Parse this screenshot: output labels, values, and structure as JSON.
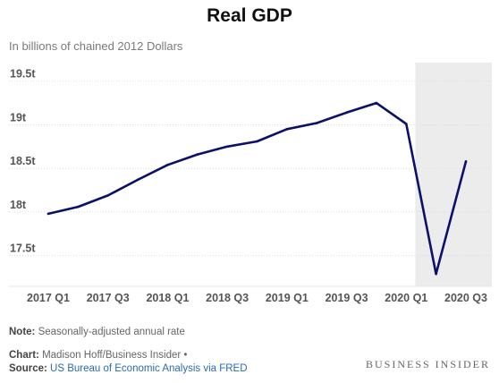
{
  "chart_data": {
    "type": "line",
    "title": "Real GDP",
    "subtitle": "In billions of chained 2012 Dollars",
    "x": [
      "2017 Q1",
      "2017 Q2",
      "2017 Q3",
      "2017 Q4",
      "2018 Q1",
      "2018 Q2",
      "2018 Q3",
      "2018 Q4",
      "2019 Q1",
      "2019 Q2",
      "2019 Q3",
      "2019 Q4",
      "2020 Q1",
      "2020 Q2",
      "2020 Q3"
    ],
    "series": [
      {
        "name": "",
        "values": [
          17.98,
          18.06,
          18.19,
          18.37,
          18.54,
          18.66,
          18.75,
          18.81,
          18.95,
          19.02,
          19.14,
          19.25,
          19.01,
          17.29,
          18.58
        ]
      }
    ],
    "x_tick_labels": [
      "2017 Q1",
      "2017 Q3",
      "2018 Q1",
      "2018 Q3",
      "2019 Q1",
      "2019 Q3",
      "2020 Q1",
      "2020 Q3"
    ],
    "y_ticks": [
      17.5,
      18,
      18.5,
      19,
      19.5
    ],
    "y_tick_labels": [
      "17.5t",
      "18t",
      "18.5t",
      "19t",
      "19.5t"
    ],
    "ylim": [
      17.25,
      19.6
    ],
    "grid": true,
    "highlight_region": {
      "from": "2020 Q1",
      "to": "2020 Q3",
      "color": "#ececec"
    },
    "line_color": "#0b1168"
  },
  "notes": {
    "note_label": "Note:",
    "note_text": "Seasonally-adjusted annual rate",
    "chart_label": "Chart:",
    "chart_text": "Madison Hoff/Business Insider •",
    "source_label": "Source:",
    "source_text": "US Bureau of Economic Analysis via FRED"
  },
  "brand": "BUSINESS INSIDER"
}
